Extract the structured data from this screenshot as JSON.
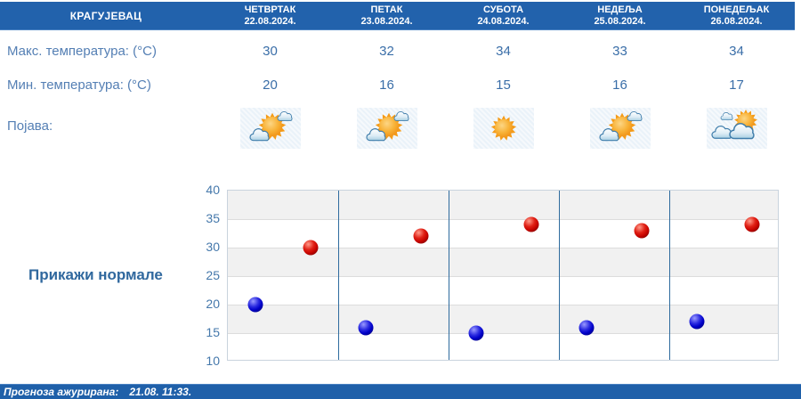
{
  "header": {
    "city": "КРАГУЈЕВАЦ",
    "days": [
      {
        "name": "ЧЕТВРТАК",
        "date": "22.08.2024."
      },
      {
        "name": "ПЕТАК",
        "date": "23.08.2024."
      },
      {
        "name": "СУБОТА",
        "date": "24.08.2024."
      },
      {
        "name": "НЕДЕЉА",
        "date": "25.08.2024."
      },
      {
        "name": "ПОНЕДЕЉАК",
        "date": "26.08.2024."
      }
    ]
  },
  "rows": {
    "max_label": "Макс. температура: (°C)",
    "min_label": "Мин. температура: (°C)",
    "phenomena_label": "Појава:",
    "max_values": [
      "30",
      "32",
      "34",
      "33",
      "34"
    ],
    "min_values": [
      "20",
      "16",
      "15",
      "16",
      "17"
    ],
    "icons": [
      "sun-small-clouds",
      "sun-small-clouds",
      "sunny",
      "sun-small-clouds",
      "mostly-cloudy"
    ]
  },
  "chart": {
    "toggle_label": "Прикажи нормале"
  },
  "chart_data": {
    "type": "scatter",
    "categories": [
      "ЧЕТВРТАК 22.08.2024.",
      "ПЕТАК 23.08.2024.",
      "СУБОТА 24.08.2024.",
      "НЕДЕЉА 25.08.2024.",
      "ПОНЕДЕЉАК 26.08.2024."
    ],
    "series": [
      {
        "name": "Макс. температура (°C)",
        "color": "#cc0000",
        "values": [
          30,
          32,
          34,
          33,
          34
        ]
      },
      {
        "name": "Мин. температура (°C)",
        "color": "#0000cc",
        "values": [
          20,
          16,
          15,
          16,
          17
        ]
      }
    ],
    "ylim": [
      10,
      40
    ],
    "yticks": [
      40,
      35,
      30,
      25,
      20,
      15,
      10
    ],
    "grid": true,
    "band_fill": "#f1f1f1",
    "separator_color": "#2e6b9e",
    "legend_position": "none"
  },
  "footer": {
    "updated_label": "Прогноза ажурирана:",
    "updated_value": "21.08. 11:33."
  },
  "colors": {
    "header_blue": "#2262ac",
    "footer_blue": "#1f60a9",
    "label_blue": "#547fb4",
    "value_blue": "#3a6ea8"
  }
}
